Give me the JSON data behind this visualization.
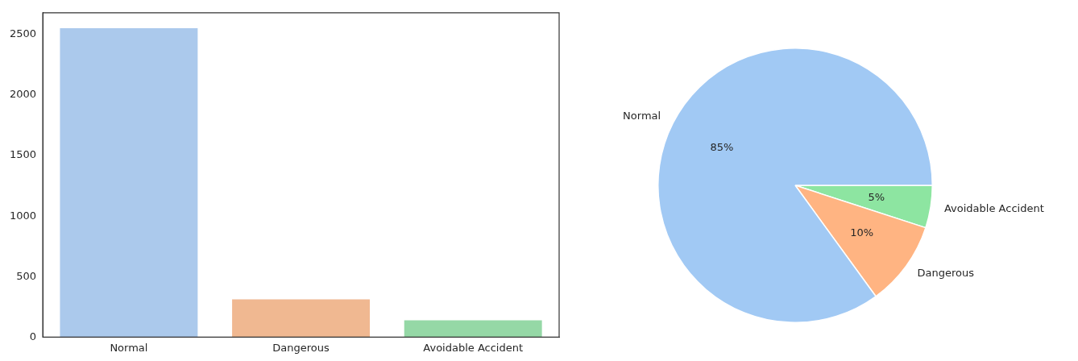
{
  "chart_data": [
    {
      "type": "bar",
      "categories": [
        "Normal",
        "Dangerous",
        "Avoidable Accident"
      ],
      "values": [
        2553,
        312,
        139
      ],
      "colors": [
        "#abc9ec",
        "#f0b891",
        "#95d8a6"
      ],
      "ylim": [
        0,
        2680
      ],
      "yticks": [
        0,
        500,
        1000,
        1500,
        2000,
        2500
      ],
      "grid": false,
      "legend": false
    },
    {
      "type": "pie",
      "categories": [
        "Normal",
        "Dangerous",
        "Avoidable Accident"
      ],
      "values": [
        85,
        10,
        5
      ],
      "colors": [
        "#a1c9f4",
        "#ffb482",
        "#8de5a1"
      ],
      "value_labels": [
        "85%",
        "10%",
        "5%"
      ],
      "legend": false
    }
  ]
}
